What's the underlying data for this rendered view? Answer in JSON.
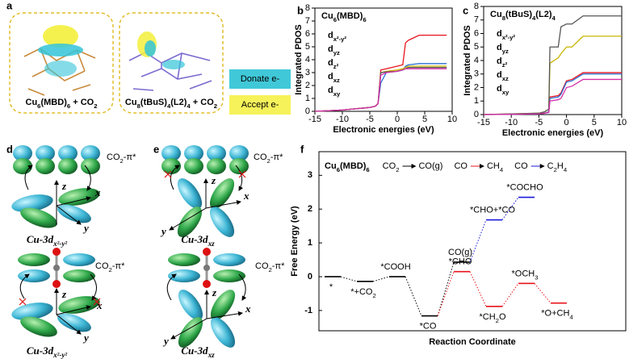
{
  "panel_labels": [
    "a",
    "b",
    "c",
    "d",
    "e",
    "f"
  ],
  "panel_a": {
    "molecules": [
      "Cu6(MBD)6 + CO2",
      "Cu8(tBuS)4(L2)4 + CO2"
    ],
    "legend": [
      {
        "label": "Donate e-",
        "color": "#40c8d8"
      },
      {
        "label": "Accept e-",
        "color": "#f6f25a"
      }
    ]
  },
  "panel_d": {
    "orbital_labels": [
      "CO2-π*",
      "CO2-π*"
    ],
    "titles": [
      "Cu-3dx²-y²",
      "Cu-3dx²-y²"
    ],
    "axes": [
      "z",
      "x",
      "y"
    ]
  },
  "panel_e": {
    "orbital_labels": [
      "CO2-π*",
      "CO2-π*"
    ],
    "titles": [
      "Cu-3dxz",
      "Cu-3dxz"
    ],
    "axes": [
      "z",
      "x",
      "y"
    ]
  },
  "chart_data": [
    {
      "type": "line",
      "title": "Cu6(MBD)6",
      "xlabel": "Electronic energies (eV)",
      "ylabel": "Integrated PDOS",
      "xlim": [
        -15,
        10
      ],
      "xticks": [
        -15,
        -10,
        -5,
        0,
        5,
        10
      ],
      "ylim": [
        0,
        8
      ],
      "yticks": [
        0,
        1,
        2,
        3,
        4,
        5,
        6,
        7,
        8
      ],
      "x": [
        -15,
        -10,
        -5,
        -4,
        -3.5,
        -3,
        -2,
        0,
        1,
        1.5,
        2,
        4,
        9
      ],
      "series": [
        {
          "name": "dx²-y²",
          "color": "#e8141c",
          "values": [
            0,
            0.1,
            0.3,
            0.4,
            0.6,
            3.2,
            3.3,
            3.5,
            3.6,
            5.3,
            5.5,
            5.9,
            5.9
          ]
        },
        {
          "name": "dyz",
          "color": "#2a6fd6",
          "values": [
            0,
            0.1,
            0.3,
            0.4,
            0.6,
            2.2,
            3,
            3.1,
            3.2,
            3.5,
            3.6,
            3.7,
            3.7
          ]
        },
        {
          "name": "dz²",
          "color": "#c8b400",
          "values": [
            0,
            0.1,
            0.3,
            0.4,
            0.6,
            3,
            3.1,
            3.2,
            3.3,
            3.4,
            3.5,
            3.5,
            3.5
          ]
        },
        {
          "name": "dxz",
          "color": "#555555",
          "values": [
            0,
            0.1,
            0.3,
            0.4,
            0.6,
            3,
            3.05,
            3.1,
            3.2,
            3.3,
            3.4,
            3.4,
            3.4
          ]
        },
        {
          "name": "dxy",
          "color": "#d62fa8",
          "values": [
            0,
            0.1,
            0.3,
            0.4,
            0.6,
            2.8,
            3,
            3.1,
            3.2,
            3.3,
            3.3,
            3.3,
            3.3
          ]
        }
      ]
    },
    {
      "type": "line",
      "title": "Cu8(tBuS)4(L2)4",
      "xlabel": "Electronic energies (eV)",
      "ylabel": "Integrated PDOS",
      "xlim": [
        -15,
        10
      ],
      "xticks": [
        -15,
        -10,
        -5,
        0,
        5,
        10
      ],
      "ylim": [
        0,
        8
      ],
      "yticks": [
        0,
        1,
        2,
        3,
        4,
        5,
        6,
        7,
        8
      ],
      "x": [
        -15,
        -10,
        -5,
        -4,
        -3.2,
        -3,
        -1.5,
        -1,
        0,
        1,
        3,
        5,
        10
      ],
      "series": [
        {
          "name": "dx²-y²",
          "color": "#e8141c",
          "values": [
            0,
            0.02,
            0.05,
            0.1,
            0.2,
            1.3,
            1.4,
            1.6,
            2.5,
            2.6,
            3.1,
            3.1,
            3.1
          ]
        },
        {
          "name": "dyz",
          "color": "#2a6fd6",
          "values": [
            0,
            0.02,
            0.05,
            0.1,
            0.2,
            1.2,
            1.3,
            1.5,
            2.4,
            2.5,
            3,
            3,
            3
          ]
        },
        {
          "name": "dz²",
          "color": "#c8b400",
          "values": [
            0,
            0.05,
            0.1,
            0.2,
            0.4,
            3.8,
            4.2,
            4.5,
            5,
            5,
            5.8,
            5.8,
            5.8
          ]
        },
        {
          "name": "dxz",
          "color": "#555555",
          "values": [
            0,
            0.05,
            0.1,
            0.2,
            0.4,
            5,
            5,
            6.5,
            6.7,
            6.7,
            7.3,
            7.3,
            7.3
          ]
        },
        {
          "name": "dxy",
          "color": "#d62fa8",
          "values": [
            0,
            0.02,
            0.05,
            0.1,
            0.15,
            1,
            1.1,
            1.2,
            2,
            2.1,
            2.6,
            2.6,
            2.6
          ]
        }
      ]
    },
    {
      "type": "energy-diagram",
      "xlabel": "Reaction Coordinate",
      "ylabel": "Free Energy (eV)",
      "ylim": [
        -1.6,
        3.7
      ],
      "yticks": [
        -1,
        0,
        1,
        2,
        3
      ],
      "catalyst": "Cu6(MBD)6",
      "catalyst_color": "#e8141c",
      "reactions": [
        {
          "from": "CO2",
          "to": "CO(g)",
          "color": "#000000"
        },
        {
          "from": "CO",
          "to": "CH4",
          "color": "#e8141c"
        },
        {
          "from": "CO",
          "to": "C2H4",
          "color": "#1a1adb"
        }
      ],
      "categories": [
        null,
        null,
        null,
        null,
        null,
        null,
        null,
        null
      ],
      "series": [
        {
          "color": "#000000",
          "values": [
            0,
            -0.14,
            0,
            -1.16,
            0.43,
            null,
            null,
            null
          ],
          "labels": [
            "*",
            "*+CO2",
            "*COOH",
            "*CO",
            "CO(g)",
            null,
            null,
            null
          ]
        },
        {
          "color": "#e8141c",
          "values": [
            null,
            null,
            null,
            null,
            0.15,
            -0.88,
            -0.2,
            -0.78
          ],
          "labels": [
            null,
            null,
            null,
            null,
            "*CHO",
            "*CH2O",
            "*OCH3",
            "*O+CH4"
          ]
        },
        {
          "color": "#1a1adb",
          "values": [
            null,
            null,
            null,
            null,
            null,
            1.68,
            2.35,
            null
          ],
          "labels": [
            null,
            null,
            null,
            null,
            null,
            "*CHO+*CO",
            "*COCHO",
            null
          ]
        }
      ]
    }
  ]
}
